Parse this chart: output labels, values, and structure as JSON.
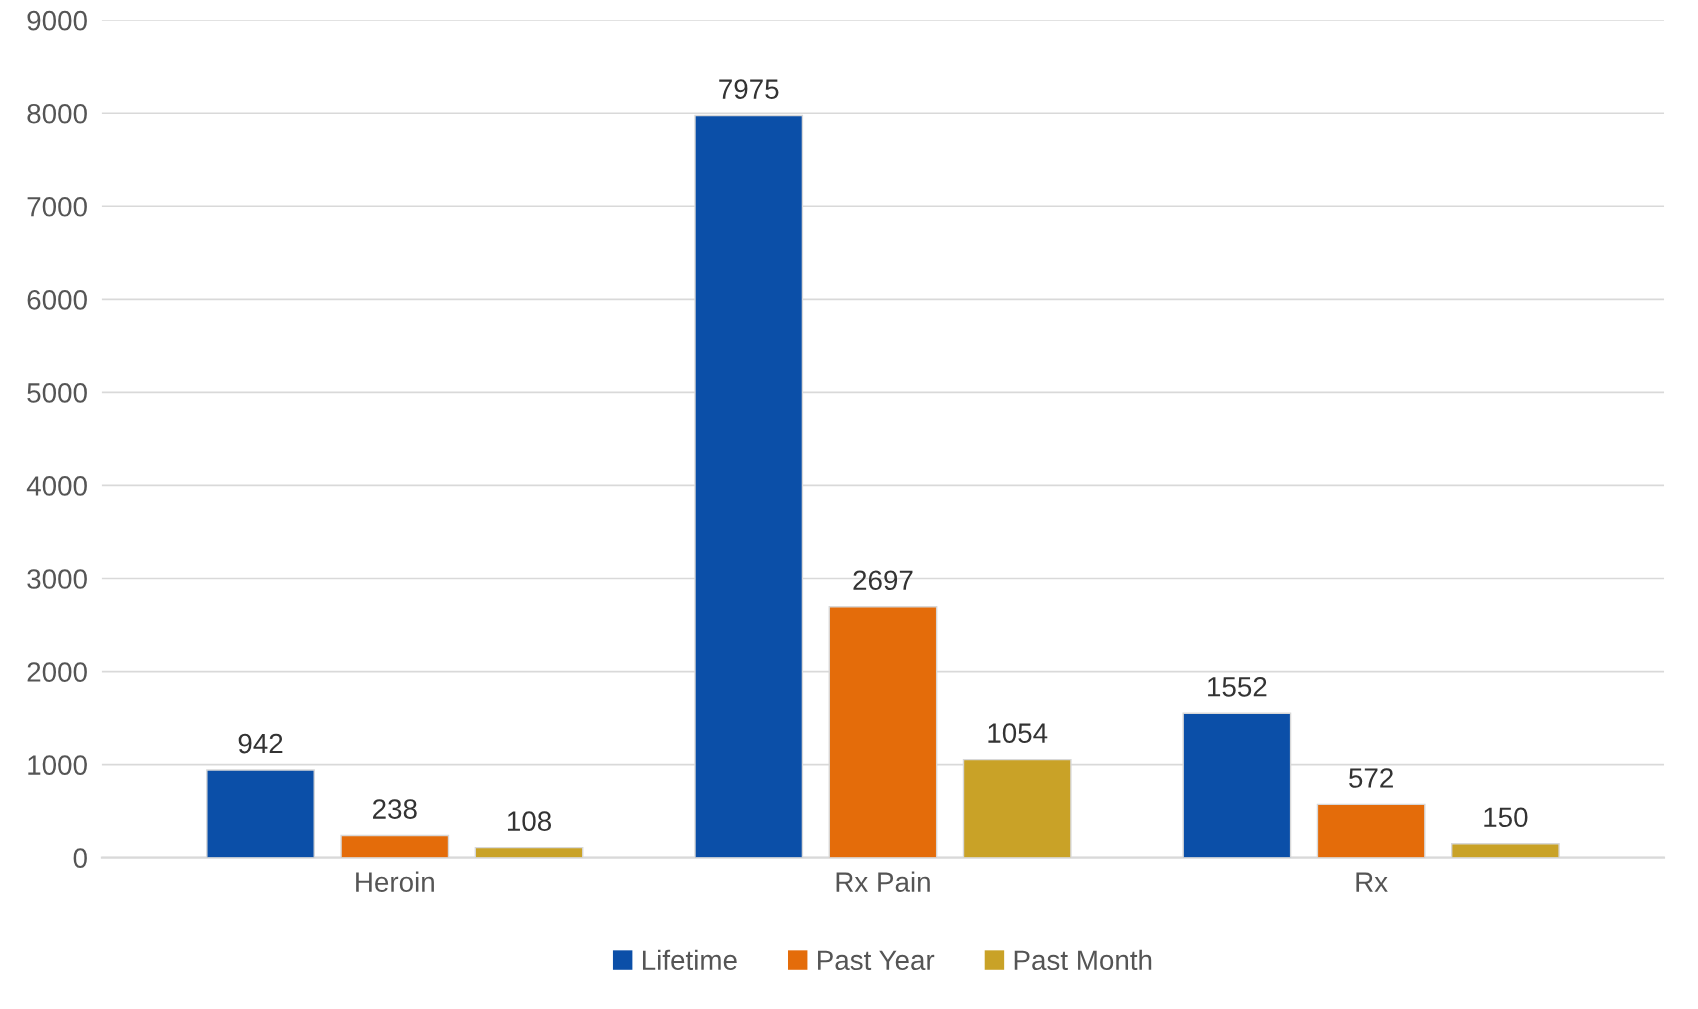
{
  "chart_data": {
    "type": "bar",
    "categories": [
      "Heroin",
      "Rx Pain",
      "Rx"
    ],
    "series": [
      {
        "name": "Lifetime",
        "color": "#0b4fa8",
        "values": [
          942,
          7975,
          1552
        ]
      },
      {
        "name": "Past Year",
        "color": "#e46c0a",
        "values": [
          238,
          2697,
          572
        ]
      },
      {
        "name": "Past Month",
        "color": "#c9a227",
        "values": [
          108,
          1054,
          150
        ]
      }
    ],
    "ylim": [
      0,
      9000
    ],
    "yticks": [
      0,
      1000,
      2000,
      3000,
      4000,
      5000,
      6000,
      7000,
      8000,
      9000
    ],
    "grid": "y",
    "legend": "bottom",
    "data_labels": true
  }
}
